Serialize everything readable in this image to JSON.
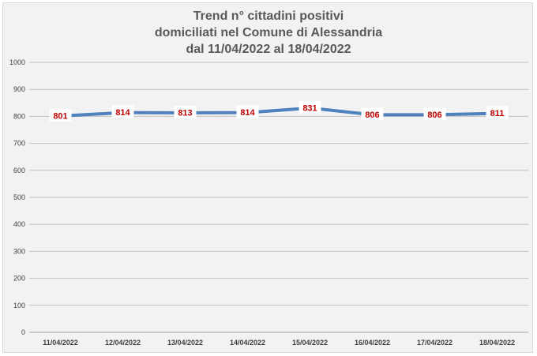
{
  "chart_data": {
    "type": "line",
    "title_lines": [
      "Trend n° cittadini positivi",
      "domiciliati nel Comune di Alessandria",
      "dal 11/04/2022 al 18/04/2022"
    ],
    "categories": [
      "11/04/2022",
      "12/04/2022",
      "13/04/2022",
      "14/04/2022",
      "15/04/2022",
      "16/04/2022",
      "17/04/2022",
      "18/04/2022"
    ],
    "series": [
      {
        "values": [
          801,
          814,
          813,
          814,
          831,
          806,
          806,
          811
        ],
        "color": "#4f81bd"
      }
    ],
    "data_labels": [
      "801",
      "814",
      "813",
      "814",
      "831",
      "806",
      "806",
      "811"
    ],
    "y_ticks": [
      0,
      100,
      200,
      300,
      400,
      500,
      600,
      700,
      800,
      900,
      1000
    ],
    "y_tick_labels": [
      "0",
      "100",
      "200",
      "300",
      "400",
      "500",
      "600",
      "700",
      "800",
      "900",
      "1000"
    ],
    "ylim": [
      0,
      1000
    ],
    "xlabel": "",
    "ylabel": "",
    "grid": true,
    "legend": "none",
    "colors": {
      "background": "#f2f2f2",
      "grid": "#bfbfbf",
      "line": "#4f81bd",
      "label_text": "#c00000",
      "title": "#595959"
    }
  }
}
